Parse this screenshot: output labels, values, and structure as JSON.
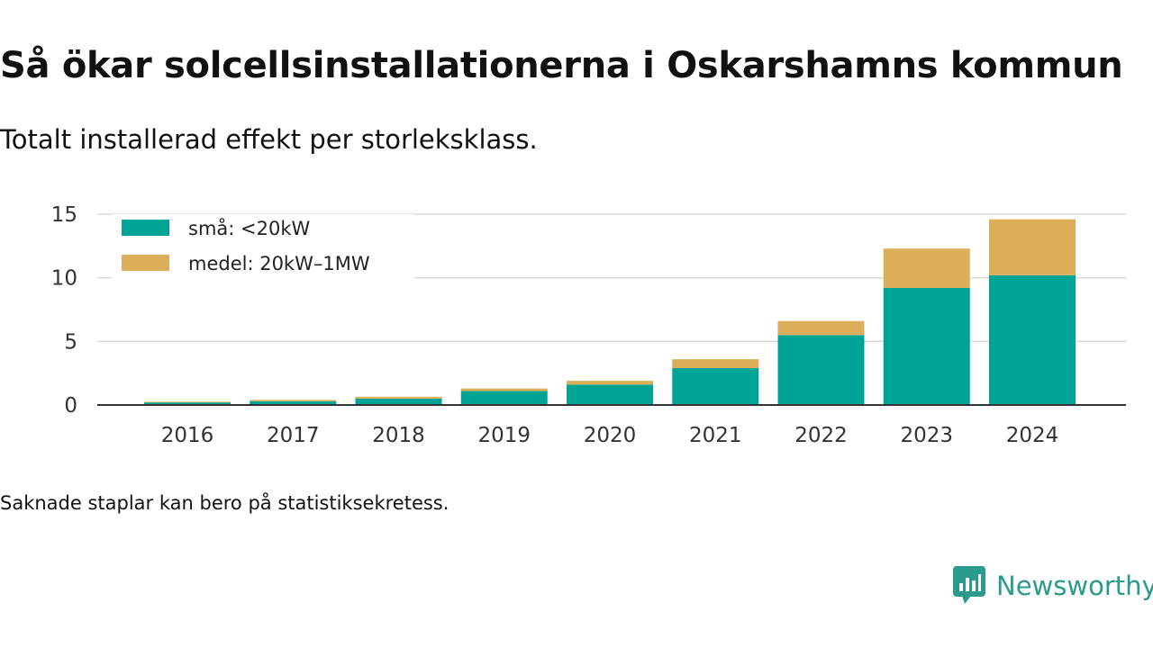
{
  "title": "Så ökar solcellsinstallationerna i Oskarshamns kommun",
  "subtitle": "Totalt installerad effekt per storleksklass.",
  "note": "Saknade staplar kan bero på statistiksekretess.",
  "brand": {
    "name": "Newsworthy",
    "color": "#2a9a8c",
    "icon": "newsworthy-logo-icon"
  },
  "chart_data": {
    "type": "bar",
    "stacked": true,
    "categories": [
      "2016",
      "2017",
      "2018",
      "2019",
      "2020",
      "2021",
      "2022",
      "2023",
      "2024"
    ],
    "series": [
      {
        "name": "små: <20kW",
        "color": "#00a496",
        "values": [
          0.2,
          0.3,
          0.5,
          1.1,
          1.6,
          2.9,
          5.5,
          9.2,
          10.2
        ]
      },
      {
        "name": "medel: 20kW–1MW",
        "color": "#dcae5a",
        "values": [
          0.05,
          0.1,
          0.15,
          0.2,
          0.3,
          0.7,
          1.1,
          3.1,
          4.4
        ]
      }
    ],
    "yticks": [
      "0",
      "5",
      "10",
      "15"
    ],
    "ylim": [
      0,
      15
    ],
    "xlabel": "",
    "ylabel": "",
    "grid": true,
    "legend": "top-left"
  }
}
